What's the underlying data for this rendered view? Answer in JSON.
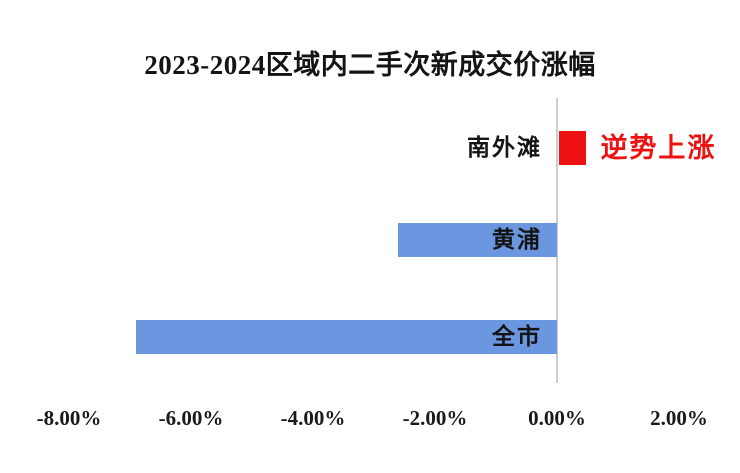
{
  "title": "2023-2024区域内二手次新成交价涨幅",
  "colors": {
    "bar_blue": "#6b97e1",
    "bar_red": "#ee1111",
    "annotation_red": "#ee1111",
    "axis_line": "#c9ced3",
    "text": "#141414"
  },
  "chart_data": {
    "type": "bar",
    "orientation": "horizontal",
    "title": "2023-2024区域内二手次新成交价涨幅",
    "categories": [
      "南外滩",
      "黄浦",
      "全市"
    ],
    "values": [
      0.45,
      -2.6,
      -6.9
    ],
    "unit": "%",
    "xlabel": "",
    "ylabel": "",
    "xlim": [
      -9.2,
      3.0
    ],
    "x_ticks": [
      "-8.00%",
      "-6.00%",
      "-4.00%",
      "-2.00%",
      "0.00%",
      "2.00%"
    ],
    "x_tick_values": [
      -8,
      -6,
      -4,
      -2,
      0,
      2
    ],
    "grid": false,
    "legend": null,
    "data_labels": false,
    "annotation": {
      "text": "逆势上涨",
      "target": "南外滩"
    }
  }
}
